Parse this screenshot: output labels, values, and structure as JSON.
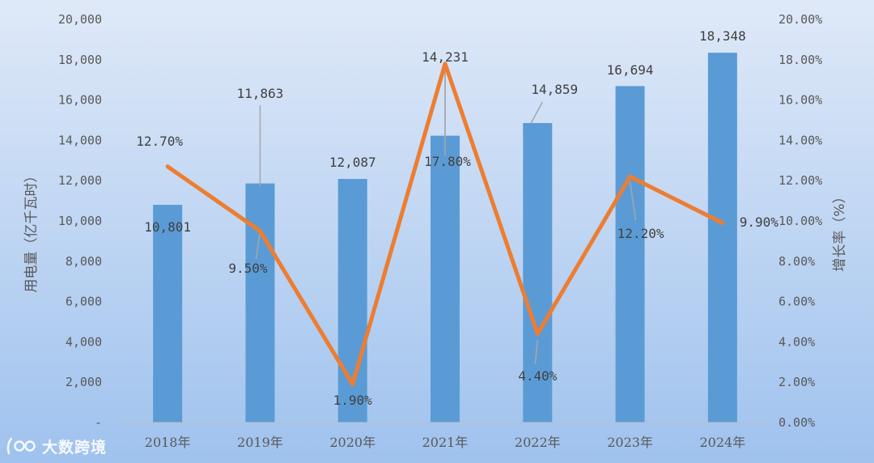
{
  "chart_data": {
    "type": "bar",
    "categories": [
      "2018年",
      "2019年",
      "2020年",
      "2021年",
      "2022年",
      "2023年",
      "2024年"
    ],
    "series": [
      {
        "type": "bar",
        "values": [
          10801,
          11863,
          12087,
          14231,
          14859,
          16694,
          18348
        ],
        "labels": [
          "10,801",
          "11,863",
          "12,087",
          "14,231",
          "14,859",
          "16,694",
          "18,348"
        ],
        "color": "#5b9bd5",
        "axis": "left"
      },
      {
        "type": "line",
        "values": [
          12.7,
          9.5,
          1.9,
          17.8,
          4.4,
          12.2,
          9.9
        ],
        "labels": [
          "12.70%",
          "9.50%",
          "1.90%",
          "17.80%",
          "4.40%",
          "12.20%",
          "9.90%"
        ],
        "color": "#ed7d31",
        "axis": "right"
      }
    ],
    "title": "",
    "ylabel": "用电量（亿千瓦时）",
    "y2label": "增长率（%）",
    "ylim": [
      0,
      20000
    ],
    "y2lim": [
      0,
      20
    ],
    "yticks": [
      "-",
      "2,000",
      "4,000",
      "6,000",
      "8,000",
      "10,000",
      "12,000",
      "14,000",
      "16,000",
      "18,000",
      "20,000"
    ],
    "y2ticks": [
      "0.00%",
      "2.00%",
      "4.00%",
      "6.00%",
      "8.00%",
      "10.00%",
      "12.00%",
      "14.00%",
      "16.00%",
      "18.00%",
      "20.00%"
    ],
    "grid": false,
    "legend": "none"
  },
  "watermark": {
    "logo_text": "100",
    "text": "大数跨境"
  }
}
